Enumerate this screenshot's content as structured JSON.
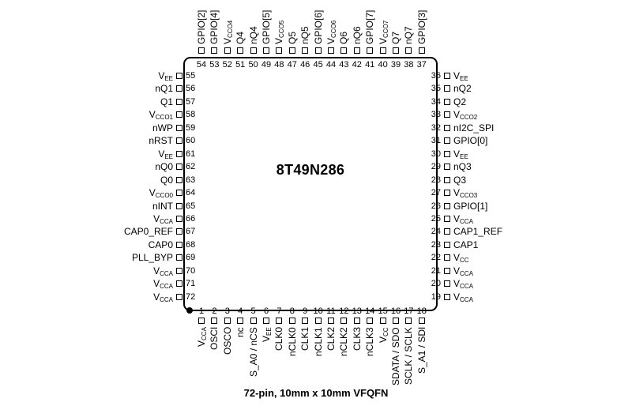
{
  "part_number": "8T49N286",
  "caption": "72-pin, 10mm x 10mm VFQFN",
  "pins_left": [
    {
      "num": "55",
      "label": "V",
      "sub": "EE"
    },
    {
      "num": "56",
      "label": "nQ1"
    },
    {
      "num": "57",
      "label": "Q1"
    },
    {
      "num": "58",
      "label": "V",
      "sub": "CCO1"
    },
    {
      "num": "59",
      "label": "nWP"
    },
    {
      "num": "60",
      "label": "nRST"
    },
    {
      "num": "61",
      "label": "V",
      "sub": "EE"
    },
    {
      "num": "62",
      "label": "nQ0"
    },
    {
      "num": "63",
      "label": "Q0"
    },
    {
      "num": "64",
      "label": "V",
      "sub": "CCO0"
    },
    {
      "num": "65",
      "label": "nINT"
    },
    {
      "num": "66",
      "label": "V",
      "sub": "CCA"
    },
    {
      "num": "67",
      "label": "CAP0_REF"
    },
    {
      "num": "68",
      "label": "CAP0"
    },
    {
      "num": "69",
      "label": "PLL_BYP"
    },
    {
      "num": "70",
      "label": "V",
      "sub": "CCA"
    },
    {
      "num": "71",
      "label": "V",
      "sub": "CCA"
    },
    {
      "num": "72",
      "label": "V",
      "sub": "CCA"
    }
  ],
  "pins_right": [
    {
      "num": "36",
      "label": "V",
      "sub": "EE"
    },
    {
      "num": "35",
      "label": "nQ2"
    },
    {
      "num": "34",
      "label": "Q2"
    },
    {
      "num": "33",
      "label": "V",
      "sub": "CCO2"
    },
    {
      "num": "32",
      "label": "nI2C_SPI"
    },
    {
      "num": "31",
      "label": "GPIO[0]"
    },
    {
      "num": "30",
      "label": "V",
      "sub": "EE"
    },
    {
      "num": "29",
      "label": "nQ3"
    },
    {
      "num": "28",
      "label": "Q3"
    },
    {
      "num": "27",
      "label": "V",
      "sub": "CCO3"
    },
    {
      "num": "26",
      "label": "GPIO[1]"
    },
    {
      "num": "25",
      "label": "V",
      "sub": "CCA"
    },
    {
      "num": "24",
      "label": "CAP1_REF"
    },
    {
      "num": "23",
      "label": "CAP1"
    },
    {
      "num": "22",
      "label": "V",
      "sub": "CC"
    },
    {
      "num": "21",
      "label": "V",
      "sub": "CCA"
    },
    {
      "num": "20",
      "label": "V",
      "sub": "CCA"
    },
    {
      "num": "19",
      "label": "V",
      "sub": "CCA"
    }
  ],
  "pins_top": [
    {
      "num": "54",
      "label": "GPIO[2]"
    },
    {
      "num": "53",
      "label": "GPIO[4]"
    },
    {
      "num": "52",
      "label": "V",
      "sub": "CCO4"
    },
    {
      "num": "51",
      "label": "Q4"
    },
    {
      "num": "50",
      "label": "nQ4"
    },
    {
      "num": "49",
      "label": "GPIO[5]"
    },
    {
      "num": "48",
      "label": "V",
      "sub": "CCO5"
    },
    {
      "num": "47",
      "label": "Q5"
    },
    {
      "num": "46",
      "label": "nQ5"
    },
    {
      "num": "45",
      "label": "GPIO[6]"
    },
    {
      "num": "44",
      "label": "V",
      "sub": "CCO6"
    },
    {
      "num": "43",
      "label": "Q6"
    },
    {
      "num": "42",
      "label": "nQ6"
    },
    {
      "num": "41",
      "label": "GPIO[7]"
    },
    {
      "num": "40",
      "label": "V",
      "sub": "CCO7"
    },
    {
      "num": "39",
      "label": "Q7"
    },
    {
      "num": "38",
      "label": "nQ7"
    },
    {
      "num": "37",
      "label": "GPIO[3]"
    }
  ],
  "pins_bottom": [
    {
      "num": "1",
      "label": "V",
      "sub": "CCA"
    },
    {
      "num": "2",
      "label": "OSCI"
    },
    {
      "num": "3",
      "label": "OSCO"
    },
    {
      "num": "4",
      "label": "nc"
    },
    {
      "num": "5",
      "label": "S_A0 / nCS"
    },
    {
      "num": "6",
      "label": "V",
      "sub": "EE"
    },
    {
      "num": "7",
      "label": "CLK0"
    },
    {
      "num": "8",
      "label": "nCLK0"
    },
    {
      "num": "9",
      "label": "CLK1"
    },
    {
      "num": "10",
      "label": "nCLK1"
    },
    {
      "num": "11",
      "label": "CLK2"
    },
    {
      "num": "12",
      "label": "nCLK2"
    },
    {
      "num": "13",
      "label": "CLK3"
    },
    {
      "num": "14",
      "label": "nCLK3"
    },
    {
      "num": "15",
      "label": "V",
      "sub": "CC"
    },
    {
      "num": "16",
      "label": "SDATA / SDO"
    },
    {
      "num": "17",
      "label": "SCLK / SCLK"
    },
    {
      "num": "18",
      "label": "S_A1 / SDI"
    }
  ]
}
